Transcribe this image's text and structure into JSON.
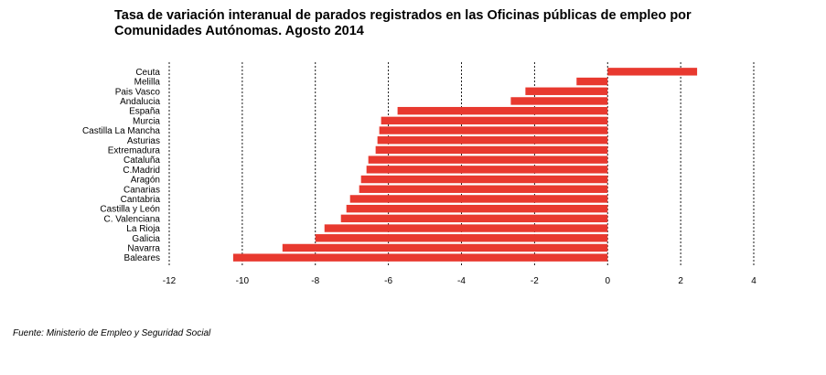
{
  "chart_data": {
    "type": "bar",
    "orientation": "horizontal",
    "title": "Tasa de variación interanual de parados registrados en las Oficinas públicas de empleo por Comunidades Autónomas.  Agosto 2014",
    "categories": [
      "Ceuta",
      "Melilla",
      "Pais Vasco",
      "Andalucia",
      "España",
      "Murcia",
      "Castilla La Mancha",
      "Asturias",
      "Extremadura",
      "Cataluña",
      "C.Madrid",
      "Aragón",
      "Canarias",
      "Cantabria",
      "Castilla y León",
      "C. Valenciana",
      "La Rioja",
      "Galicia",
      "Navarra",
      "Baleares"
    ],
    "values": [
      2.45,
      -0.85,
      -2.25,
      -2.65,
      -5.75,
      -6.2,
      -6.25,
      -6.3,
      -6.35,
      -6.55,
      -6.6,
      -6.75,
      -6.8,
      -7.05,
      -7.15,
      -7.3,
      -7.75,
      -8.0,
      -8.9,
      -10.25
    ],
    "xlim": [
      -12,
      4
    ],
    "xticks": [
      -12,
      -10,
      -8,
      -6,
      -4,
      -2,
      0,
      2,
      4
    ],
    "grid": "vertical dashed",
    "bar_color": "#e8392f"
  },
  "source": "Fuente: Ministerio de Empleo y Seguridad Social"
}
